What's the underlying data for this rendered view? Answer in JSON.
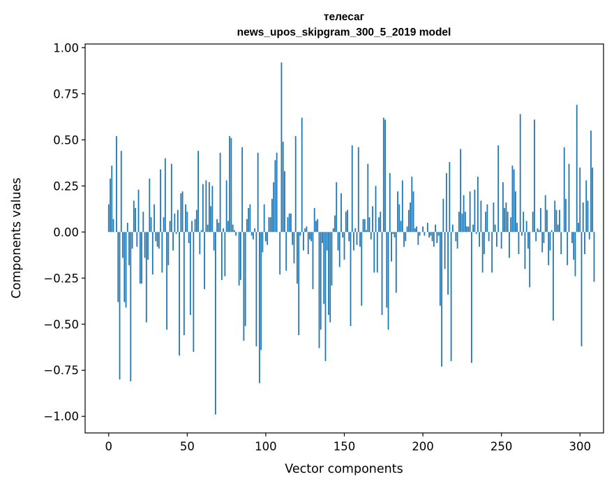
{
  "chart_data": {
    "type": "bar",
    "title_line1": "телесаг",
    "title_line2": "news_upos_skipgram_300_5_2019 model",
    "xlabel": "Vector components",
    "ylabel": "Components values",
    "xlim": [
      -15,
      315
    ],
    "ylim": [
      -1.09,
      1.02
    ],
    "xticks": [
      0,
      50,
      100,
      150,
      200,
      250,
      300
    ],
    "xtick_labels": [
      "0",
      "50",
      "100",
      "150",
      "200",
      "250",
      "300"
    ],
    "yticks": [
      1.0,
      0.75,
      0.5,
      0.25,
      0.0,
      -0.25,
      -0.5,
      -0.75,
      -1.0
    ],
    "ytick_labels": [
      "1.00",
      "0.75",
      "0.50",
      "0.25",
      "0.00",
      "−0.25",
      "−0.50",
      "−0.75",
      "−1.00"
    ],
    "bar_color": "#1f77b4",
    "values": [
      0.15,
      0.29,
      0.36,
      0.07,
      0.0,
      0.52,
      -0.38,
      -0.8,
      0.44,
      -0.14,
      -0.38,
      -0.41,
      0.05,
      -0.18,
      -0.81,
      -0.09,
      0.17,
      0.13,
      -0.08,
      0.23,
      -0.28,
      -0.28,
      0.11,
      -0.14,
      -0.49,
      -0.15,
      0.29,
      0.08,
      -0.23,
      0.15,
      -0.05,
      -0.08,
      -0.09,
      0.34,
      -0.22,
      0.08,
      0.4,
      -0.53,
      -0.18,
      0.06,
      0.37,
      -0.1,
      0.1,
      -0.01,
      0.12,
      -0.67,
      0.21,
      0.22,
      -0.56,
      0.15,
      0.11,
      -0.06,
      -0.45,
      0.06,
      -0.65,
      0.07,
      0.12,
      0.44,
      -0.12,
      0.01,
      0.26,
      -0.31,
      0.28,
      0.04,
      0.27,
      0.14,
      0.25,
      -0.1,
      -0.99,
      0.07,
      0.05,
      0.43,
      -0.26,
      0.02,
      -0.24,
      0.28,
      0.06,
      0.52,
      0.51,
      0.04,
      0.01,
      -0.02,
      0.0,
      -0.29,
      -0.26,
      0.46,
      -0.59,
      -0.51,
      0.07,
      0.13,
      0.15,
      -0.02,
      -0.04,
      0.02,
      -0.62,
      0.43,
      -0.82,
      -0.64,
      -0.11,
      0.15,
      -0.05,
      -0.07,
      0.08,
      0.08,
      0.18,
      0.27,
      0.39,
      0.43,
      0.0,
      -0.23,
      0.92,
      0.49,
      0.33,
      -0.21,
      0.08,
      0.1,
      0.1,
      -0.07,
      -0.17,
      0.52,
      -0.28,
      -0.56,
      -0.02,
      0.62,
      -0.1,
      0.02,
      0.03,
      -0.12,
      -0.04,
      -0.05,
      -0.31,
      0.13,
      0.06,
      0.07,
      -0.63,
      -0.53,
      -0.06,
      -0.39,
      -0.7,
      -0.1,
      -0.45,
      -0.49,
      -0.29,
      0.02,
      0.09,
      0.27,
      -0.1,
      -0.19,
      0.21,
      -0.03,
      -0.15,
      0.11,
      0.12,
      -0.05,
      -0.51,
      0.47,
      -0.1,
      0.02,
      -0.07,
      0.46,
      -0.08,
      -0.4,
      0.07,
      0.07,
      0.01,
      0.37,
      0.08,
      -0.04,
      0.14,
      -0.22,
      0.25,
      -0.22,
      0.08,
      0.11,
      -0.45,
      0.62,
      0.61,
      -0.41,
      -0.53,
      0.32,
      -0.16,
      -0.01,
      -0.03,
      -0.33,
      0.22,
      0.15,
      0.06,
      0.28,
      -0.08,
      -0.05,
      0.03,
      0.12,
      0.16,
      0.3,
      0.22,
      0.02,
      0.03,
      -0.07,
      -0.02,
      0.0,
      0.03,
      -0.02,
      0.0,
      0.05,
      -0.03,
      -0.02,
      -0.05,
      -0.08,
      0.04,
      -0.06,
      -0.02,
      -0.4,
      -0.73,
      0.18,
      -0.2,
      0.32,
      -0.34,
      0.38,
      -0.7,
      0.04,
      0.0,
      -0.05,
      -0.09,
      0.11,
      0.45,
      0.1,
      0.2,
      0.11,
      0.03,
      0.03,
      0.22,
      -0.71,
      0.04,
      0.23,
      -0.01,
      0.3,
      -0.08,
      0.17,
      -0.22,
      -0.12,
      0.11,
      0.15,
      -0.05,
      0.0,
      -0.22,
      0.16,
      0.04,
      -0.08,
      0.47,
      0.0,
      -0.09,
      0.27,
      0.13,
      0.16,
      0.11,
      -0.14,
      0.08,
      0.36,
      0.34,
      0.22,
      0.05,
      -0.12,
      0.64,
      -0.02,
      0.11,
      -0.2,
      0.06,
      -0.09,
      -0.3,
      0.0,
      0.11,
      0.61,
      -0.05,
      0.02,
      0.01,
      0.13,
      -0.11,
      -0.06,
      0.2,
      0.12,
      -0.18,
      -0.1,
      0.01,
      -0.48,
      0.17,
      0.12,
      0.04,
      0.12,
      -0.12,
      0.0,
      0.46,
      0.18,
      -0.18,
      0.37,
      0.0,
      -0.06,
      -0.15,
      -0.24,
      0.69,
      0.05,
      0.35,
      -0.62,
      0.16,
      -0.12,
      0.28,
      0.17,
      -0.04,
      0.55,
      0.35,
      -0.27
    ]
  }
}
